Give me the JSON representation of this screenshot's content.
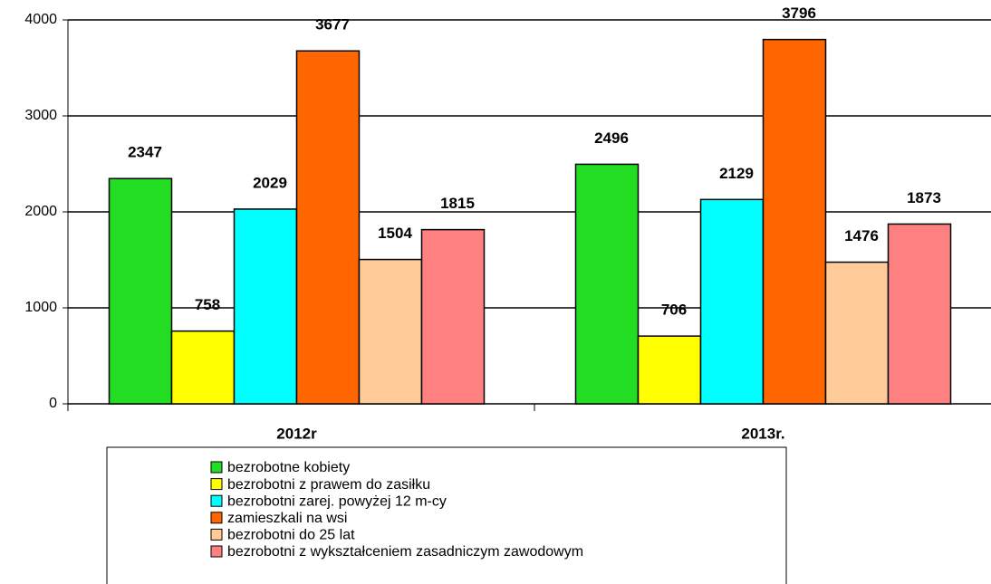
{
  "chart_data": {
    "type": "bar",
    "categories": [
      "2012r",
      "2013r."
    ],
    "series": [
      {
        "name": "bezrobotne kobiety",
        "color": "#22dd22",
        "values": [
          2347,
          2496
        ]
      },
      {
        "name": "bezrobotni z prawem do zasiłku",
        "color": "#ffff00",
        "values": [
          758,
          706
        ]
      },
      {
        "name": "bezrobotni zarej. powyżej 12 m-cy",
        "color": "#00ffff",
        "values": [
          2029,
          2129
        ]
      },
      {
        "name": "zamieszkali na wsi",
        "color": "#ff6600",
        "values": [
          3677,
          3796
        ]
      },
      {
        "name": "bezrobotni do 25 lat",
        "color": "#ffcc99",
        "values": [
          1504,
          1476
        ]
      },
      {
        "name": "bezrobotni z wykształceniem zasadniczym zawodowym",
        "color": "#ff8080",
        "values": [
          1815,
          1873
        ]
      }
    ],
    "ylim": [
      0,
      4000
    ],
    "yticks": [
      0,
      1000,
      2000,
      3000,
      4000
    ],
    "grid": true,
    "legend": "bottom"
  }
}
